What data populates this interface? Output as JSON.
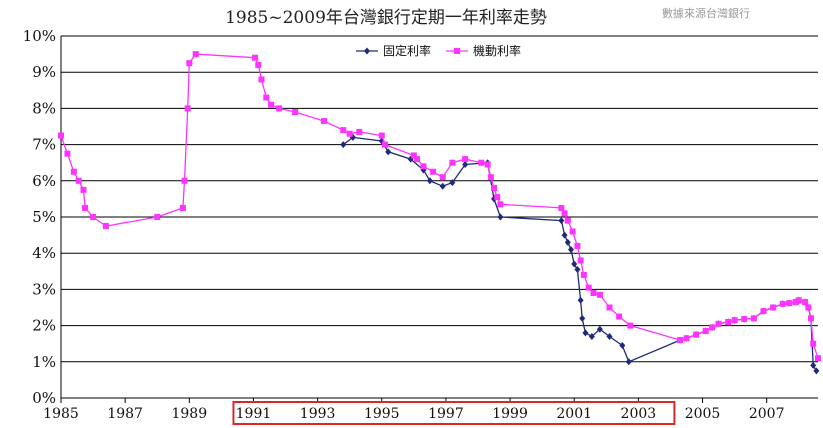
{
  "chart_data": {
    "type": "line",
    "title": "1985~2009年台灣銀行定期一年利率走勢",
    "source_note": "數據來源台灣銀行",
    "xlim": [
      1985,
      2008.6
    ],
    "ylim": [
      0,
      10
    ],
    "y_ticks": [
      "0%",
      "1%",
      "2%",
      "3%",
      "4%",
      "5%",
      "6%",
      "7%",
      "8%",
      "9%",
      "10%"
    ],
    "x_ticks": [
      1985,
      1987,
      1989,
      1991,
      1993,
      1995,
      1997,
      1999,
      2001,
      2003,
      2005,
      2007
    ],
    "grid": true,
    "legend": "top-center",
    "highlight_box": [
      1991,
      2003.5
    ],
    "series": [
      {
        "name": "固定利率",
        "color": "#1f2a78",
        "marker": "diamond",
        "points": [
          [
            1993.8,
            7.0
          ],
          [
            1994.1,
            7.2
          ],
          [
            1995.0,
            7.1
          ],
          [
            1995.2,
            6.8
          ],
          [
            1995.9,
            6.6
          ],
          [
            1996.3,
            6.3
          ],
          [
            1996.5,
            6.0
          ],
          [
            1996.9,
            5.85
          ],
          [
            1997.2,
            5.95
          ],
          [
            1997.6,
            6.45
          ],
          [
            1998.3,
            6.5
          ],
          [
            1998.5,
            5.5
          ],
          [
            1998.7,
            5.0
          ],
          [
            2000.6,
            4.9
          ],
          [
            2000.7,
            4.5
          ],
          [
            2000.8,
            4.3
          ],
          [
            2000.9,
            4.1
          ],
          [
            2001.0,
            3.7
          ],
          [
            2001.1,
            3.55
          ],
          [
            2001.2,
            2.7
          ],
          [
            2001.25,
            2.2
          ],
          [
            2001.35,
            1.8
          ],
          [
            2001.55,
            1.7
          ],
          [
            2001.8,
            1.9
          ],
          [
            2002.1,
            1.7
          ],
          [
            2002.5,
            1.45
          ],
          [
            2002.7,
            1.0
          ]
        ]
      },
      {
        "name": "機動利率",
        "color": "#ff33ff",
        "marker": "square",
        "points": [
          [
            1985.0,
            7.25
          ],
          [
            1985.2,
            6.75
          ],
          [
            1985.4,
            6.25
          ],
          [
            1985.55,
            6.0
          ],
          [
            1985.7,
            5.75
          ],
          [
            1985.75,
            5.25
          ],
          [
            1986.0,
            5.0
          ],
          [
            1986.4,
            4.75
          ],
          [
            1988.0,
            5.0
          ],
          [
            1988.8,
            5.25
          ],
          [
            1988.85,
            6.0
          ],
          [
            1988.95,
            8.0
          ],
          [
            1989.0,
            9.25
          ],
          [
            1989.2,
            9.5
          ],
          [
            1991.05,
            9.4
          ],
          [
            1991.15,
            9.2
          ],
          [
            1991.25,
            8.8
          ],
          [
            1991.4,
            8.3
          ],
          [
            1991.55,
            8.1
          ],
          [
            1991.8,
            8.0
          ],
          [
            1992.3,
            7.9
          ],
          [
            1993.2,
            7.65
          ],
          [
            1993.8,
            7.4
          ],
          [
            1994.0,
            7.3
          ],
          [
            1994.3,
            7.35
          ],
          [
            1995.0,
            7.25
          ],
          [
            1995.1,
            7.0
          ],
          [
            1996.0,
            6.7
          ],
          [
            1996.1,
            6.6
          ],
          [
            1996.3,
            6.4
          ],
          [
            1996.6,
            6.25
          ],
          [
            1996.9,
            6.1
          ],
          [
            1997.2,
            6.5
          ],
          [
            1997.6,
            6.6
          ],
          [
            1998.1,
            6.5
          ],
          [
            1998.3,
            6.45
          ],
          [
            1998.4,
            6.1
          ],
          [
            1998.5,
            5.8
          ],
          [
            1998.6,
            5.55
          ],
          [
            1998.7,
            5.35
          ],
          [
            2000.6,
            5.25
          ],
          [
            2000.7,
            5.1
          ],
          [
            2000.8,
            4.9
          ],
          [
            2000.95,
            4.6
          ],
          [
            2001.1,
            4.2
          ],
          [
            2001.2,
            3.8
          ],
          [
            2001.3,
            3.4
          ],
          [
            2001.45,
            3.05
          ],
          [
            2001.6,
            2.9
          ],
          [
            2001.8,
            2.85
          ],
          [
            2002.1,
            2.5
          ],
          [
            2002.4,
            2.25
          ],
          [
            2002.75,
            2.0
          ],
          [
            2004.3,
            1.6
          ],
          [
            2004.5,
            1.65
          ],
          [
            2004.8,
            1.75
          ],
          [
            2005.1,
            1.85
          ],
          [
            2005.3,
            1.95
          ],
          [
            2005.5,
            2.05
          ],
          [
            2005.8,
            2.1
          ],
          [
            2006.0,
            2.15
          ],
          [
            2006.3,
            2.18
          ],
          [
            2006.6,
            2.2
          ],
          [
            2006.9,
            2.4
          ],
          [
            2007.2,
            2.5
          ],
          [
            2007.5,
            2.6
          ],
          [
            2007.7,
            2.62
          ],
          [
            2007.9,
            2.65
          ],
          [
            2008.0,
            2.7
          ],
          [
            2008.2,
            2.65
          ],
          [
            2008.3,
            2.5
          ],
          [
            2008.38,
            2.2
          ],
          [
            2008.45,
            1.5
          ],
          [
            2008.6,
            1.1
          ]
        ]
      }
    ],
    "tail_fixed": [
      [
        2008.45,
        0.9
      ],
      [
        2008.55,
        0.75
      ]
    ]
  }
}
